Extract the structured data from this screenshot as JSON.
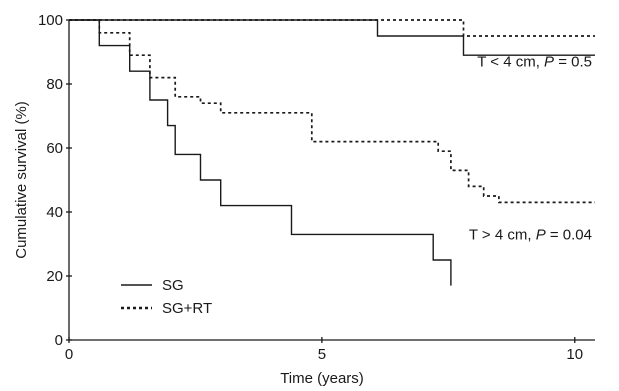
{
  "chart_data": {
    "type": "line",
    "title": "",
    "xlabel": "Time (years)",
    "ylabel": "Cumulative survival (%)",
    "xlim": [
      0,
      10.4
    ],
    "ylim": [
      0,
      100
    ],
    "xticks": [
      "0",
      "5",
      "10"
    ],
    "yticks": [
      "0",
      "20",
      "40",
      "60",
      "80",
      "100"
    ],
    "xtick_values": [
      0,
      5,
      10
    ],
    "ytick_values": [
      0,
      20,
      40,
      60,
      80,
      100
    ],
    "grid": false,
    "legend": {
      "placement": "bottom-left",
      "entries": [
        {
          "label": "SG",
          "style": "solid"
        },
        {
          "label": "SG+RT",
          "style": "dotted"
        }
      ]
    },
    "annotations": [
      {
        "id": "small",
        "prefix": "T < 4 cm, ",
        "p_label": "P",
        "suffix": " = 0.5",
        "at": [
          10.4,
          87
        ]
      },
      {
        "id": "large",
        "prefix": "T > 4 cm, ",
        "p_label": "P",
        "suffix": " = 0.04",
        "at": [
          10.4,
          33
        ]
      }
    ],
    "series": [
      {
        "group": "T < 4 cm",
        "style": "solid",
        "x": [
          0,
          6.1,
          6.1,
          7.8,
          7.8,
          10.4
        ],
        "y": [
          100,
          100,
          95,
          95,
          89,
          89
        ]
      },
      {
        "group": "T < 4 cm",
        "style": "dotted",
        "x": [
          0,
          7.8,
          7.8,
          10.4
        ],
        "y": [
          100,
          100,
          95,
          95
        ]
      },
      {
        "group": "T > 4 cm",
        "style": "solid",
        "x": [
          0,
          0.6,
          0.6,
          1.2,
          1.2,
          1.6,
          1.6,
          1.95,
          1.95,
          2.1,
          2.1,
          2.6,
          2.6,
          3.0,
          3.0,
          4.4,
          4.4,
          7.2,
          7.2,
          7.55,
          7.55
        ],
        "y": [
          100,
          100,
          92,
          92,
          84,
          84,
          75,
          75,
          67,
          67,
          58,
          58,
          50,
          50,
          42,
          42,
          33,
          33,
          25,
          25,
          17
        ]
      },
      {
        "group": "T > 4 cm",
        "style": "dotted",
        "x": [
          0,
          0.6,
          0.6,
          1.2,
          1.2,
          1.6,
          1.6,
          2.1,
          2.1,
          2.6,
          2.6,
          3.0,
          3.0,
          4.8,
          4.8,
          7.3,
          7.3,
          7.55,
          7.55,
          7.9,
          7.9,
          8.2,
          8.2,
          8.5,
          8.5,
          10.4
        ],
        "y": [
          100,
          100,
          96,
          96,
          89,
          89,
          82,
          82,
          76,
          76,
          74,
          74,
          71,
          71,
          62,
          62,
          59,
          59,
          53,
          53,
          48,
          48,
          45,
          45,
          43,
          43
        ]
      }
    ]
  }
}
